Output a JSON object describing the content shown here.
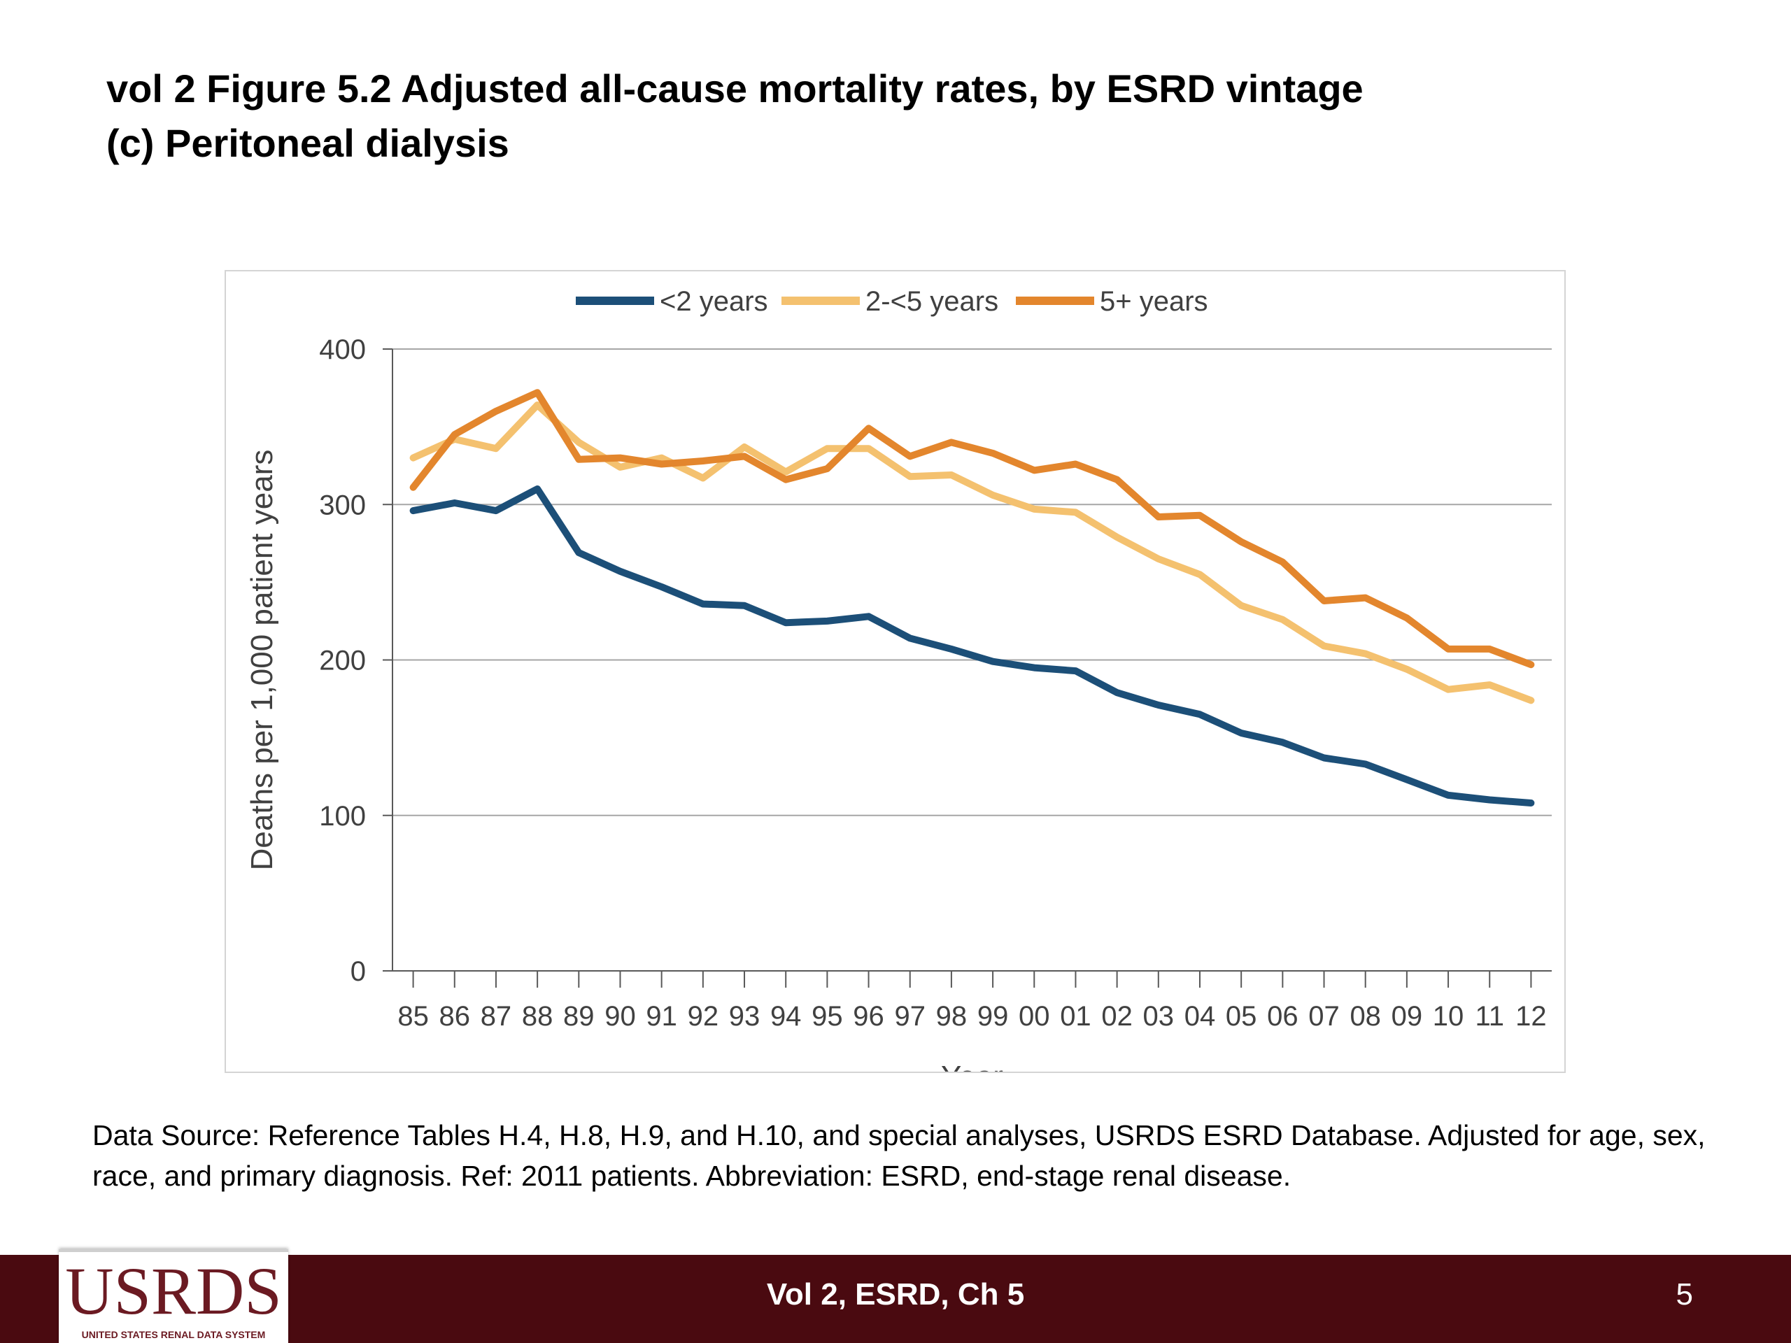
{
  "slide": {
    "title_line1": "vol 2  Figure 5.2 Adjusted all-cause mortality rates, by ESRD vintage",
    "title_line2": "(c) Peritoneal dialysis",
    "source_note": "Data Source: Reference Tables H.4, H.8, H.9, and H.10, and special analyses, USRDS ESRD Database. Adjusted for age, sex, race, and primary diagnosis. Ref: 2011 patients. Abbreviation: ESRD, end-stage renal disease."
  },
  "footer": {
    "logo_text": "USRDS",
    "logo_subtext": "UNITED STATES RENAL DATA SYSTEM",
    "center_text": "Vol 2, ESRD, Ch 5",
    "page_number": "5",
    "bar_color": "#4a0a10"
  },
  "chart_data": {
    "type": "line",
    "title": "",
    "xlabel": "Year",
    "ylabel": "Deaths per 1,000 patient years",
    "ylim": [
      0,
      400
    ],
    "yticks": [
      0,
      100,
      200,
      300,
      400
    ],
    "grid": true,
    "legend_position": "top",
    "categories": [
      "85",
      "86",
      "87",
      "88",
      "89",
      "90",
      "91",
      "92",
      "93",
      "94",
      "95",
      "96",
      "97",
      "98",
      "99",
      "00",
      "01",
      "02",
      "03",
      "04",
      "05",
      "06",
      "07",
      "08",
      "09",
      "10",
      "11",
      "12"
    ],
    "series": [
      {
        "name": "<2 years",
        "color": "#1c4f78",
        "values": [
          296,
          301,
          296,
          310,
          269,
          257,
          247,
          236,
          235,
          224,
          225,
          228,
          214,
          207,
          199,
          195,
          193,
          179,
          171,
          165,
          153,
          147,
          137,
          133,
          123,
          113,
          110,
          108
        ]
      },
      {
        "name": "2-<5 years",
        "color": "#f4c16f",
        "values": [
          330,
          342,
          336,
          364,
          340,
          324,
          330,
          317,
          337,
          321,
          336,
          336,
          318,
          319,
          306,
          297,
          295,
          279,
          265,
          255,
          235,
          226,
          209,
          204,
          194,
          181,
          184,
          174
        ]
      },
      {
        "name": "5+ years",
        "color": "#e3862d",
        "values": [
          311,
          345,
          360,
          372,
          329,
          330,
          326,
          328,
          331,
          316,
          323,
          349,
          331,
          340,
          333,
          322,
          326,
          316,
          292,
          293,
          276,
          263,
          238,
          240,
          227,
          207,
          207,
          197
        ]
      }
    ]
  }
}
